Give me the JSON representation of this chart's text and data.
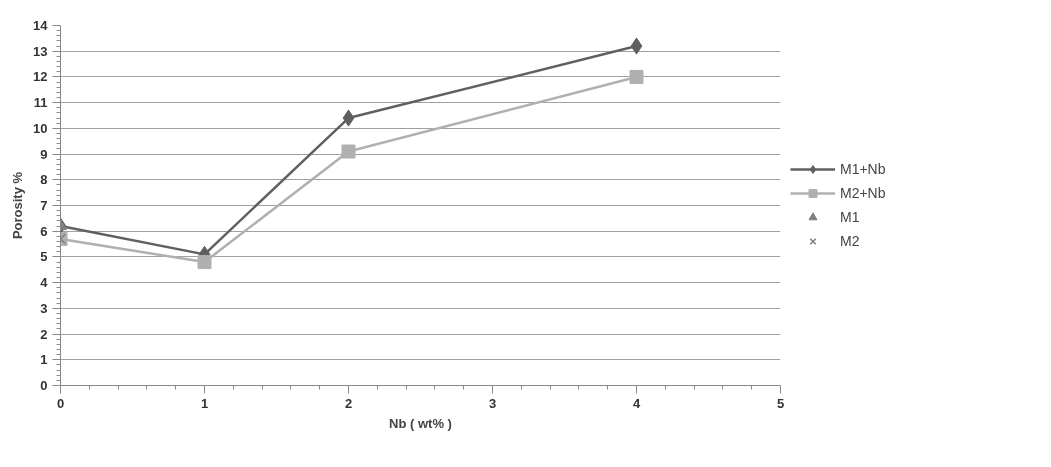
{
  "chart_data": {
    "type": "line",
    "xlabel": "Nb ( wt% )",
    "ylabel": "Porosity %",
    "xlim": [
      0,
      5
    ],
    "xticks": [
      0,
      1,
      2,
      3,
      4,
      5
    ],
    "ylim": [
      0,
      14
    ],
    "yticks": [
      0,
      1,
      2,
      3,
      4,
      5,
      6,
      7,
      8,
      9,
      10,
      11,
      12,
      13,
      14
    ],
    "grid": "y",
    "legend": "right",
    "series": [
      {
        "name": "M1+Nb",
        "marker": "diamond",
        "color": "#606060",
        "x": [
          0,
          1,
          2,
          4
        ],
        "values": [
          6.2,
          5.1,
          10.4,
          13.2
        ]
      },
      {
        "name": "M2+Nb",
        "marker": "square",
        "color": "#b0b0b0",
        "x": [
          0,
          1,
          2,
          4
        ],
        "values": [
          5.7,
          4.8,
          9.1,
          12.0
        ]
      },
      {
        "name": "M1",
        "type": "scatter",
        "marker": "triangle",
        "color": "#7f7f7f",
        "x": [
          0
        ],
        "values": [
          6.2
        ]
      },
      {
        "name": "M2",
        "type": "scatter",
        "marker": "cross",
        "color": "#7f7f7f",
        "x": [
          0
        ],
        "values": [
          5.7
        ]
      }
    ]
  }
}
